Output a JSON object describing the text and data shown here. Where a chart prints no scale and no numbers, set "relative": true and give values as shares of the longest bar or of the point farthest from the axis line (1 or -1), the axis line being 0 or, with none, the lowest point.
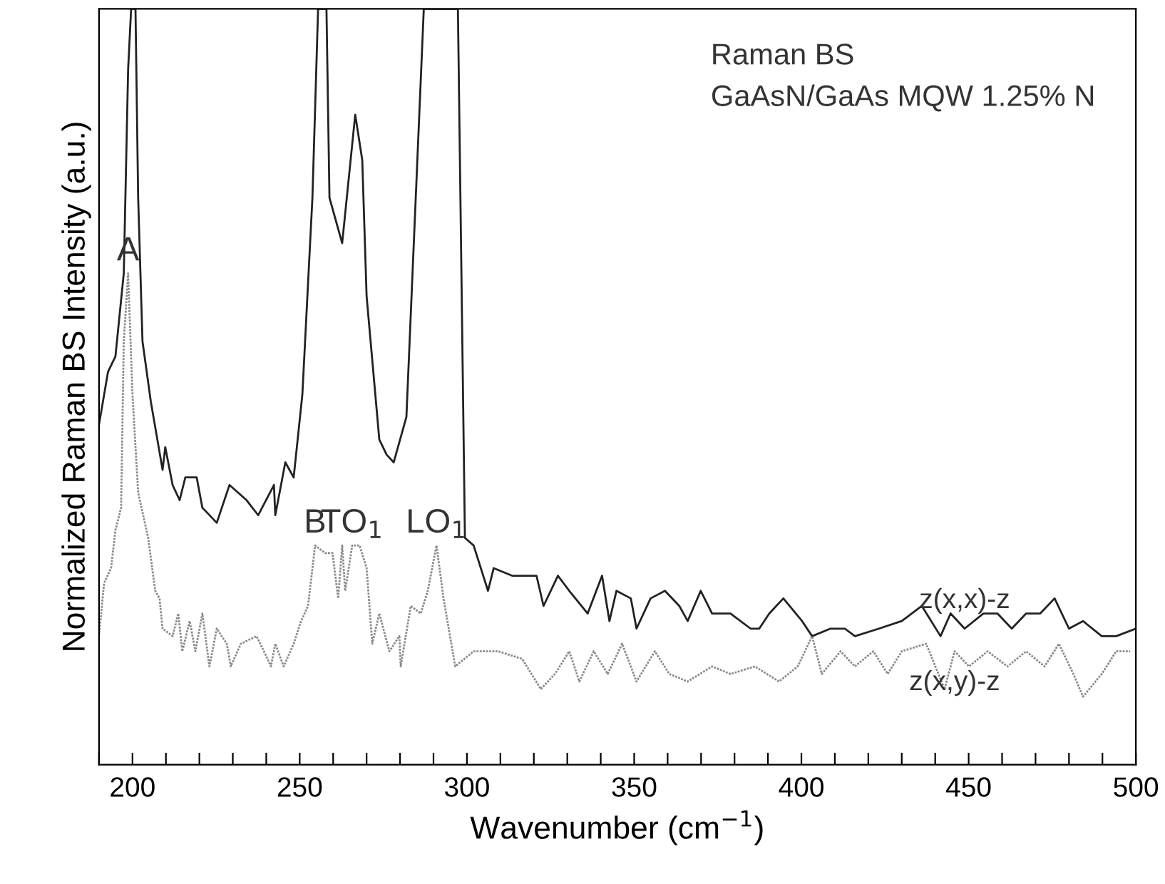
{
  "chart_data": {
    "type": "line",
    "xlabel": "Wavenumber (cm$^{−1}$)",
    "ylabel": "Normalized Raman BS Intensity (a.u.)",
    "relative": true,
    "tick_labels": "x",
    "grid": false,
    "legend": false,
    "xlim": [
      190,
      500
    ],
    "xticks": [
      {
        "value": 190,
        "label": null
      },
      200,
      {
        "value": 210,
        "label": null
      },
      {
        "value": 220,
        "label": null
      },
      {
        "value": 230,
        "label": null
      },
      {
        "value": 240,
        "label": null
      },
      250,
      {
        "value": 260,
        "label": null
      },
      {
        "value": 270,
        "label": null
      },
      {
        "value": 280,
        "label": null
      },
      {
        "value": 290,
        "label": null
      },
      300,
      {
        "value": 310,
        "label": null
      },
      {
        "value": 320,
        "label": null
      },
      {
        "value": 330,
        "label": null
      },
      {
        "value": 340,
        "label": null
      },
      350,
      {
        "value": 360,
        "label": null
      },
      {
        "value": 370,
        "label": null
      },
      {
        "value": 380,
        "label": null
      },
      {
        "value": 390,
        "label": null
      },
      400,
      {
        "value": 410,
        "label": null
      },
      {
        "value": 420,
        "label": null
      },
      {
        "value": 430,
        "label": null
      },
      {
        "value": 440,
        "label": null
      },
      450,
      {
        "value": 460,
        "label": null
      },
      {
        "value": 470,
        "label": null
      },
      {
        "value": 480,
        "label": null
      },
      {
        "value": 490,
        "label": null
      },
      500
    ],
    "annotations": [
      "Raman BS",
      "GaAsN/GaAs MQW 1.25% N",
      {
        "text": "A",
        "x": 198.7,
        "y": 0.65
      },
      {
        "text": "B",
        "x": 254.6,
        "y": 0.29
      },
      {
        "text": "TO$_{1}$",
        "x": 265.7,
        "y": 0.29
      },
      {
        "text": "LO$_{1}$",
        "x": 290.9,
        "y": 0.29
      }
    ],
    "series": [
      {
        "name": "z(x,x)-z",
        "color": "#222222",
        "line_style": "solid",
        "x": [
          190,
          192.7,
          194.9,
          197.4,
          198.7,
          199.6,
          200.9,
          201.7,
          203.0,
          205.5,
          209.0,
          209.8,
          212.0,
          214.1,
          215.8,
          219.2,
          220.9,
          225.2,
          229.0,
          234.1,
          237.6,
          242.3,
          242.7,
          245.7,
          248.2,
          250.8,
          253.8,
          255.5,
          258.0,
          258.9,
          262.7,
          266.6,
          268.7,
          270.0,
          273.8,
          276.0,
          278.1,
          281.9,
          287.1,
          297.3,
          299.4,
          302.0,
          306.3,
          308.0,
          313.5,
          320.8,
          322.9,
          327.2,
          330.6,
          336.1,
          340.4,
          342.6,
          344.7,
          349.0,
          350.7,
          354.9,
          359.2,
          363.5,
          366.0,
          369.9,
          373.3,
          378.8,
          384.8,
          387.4,
          390.4,
          394.6,
          400.2,
          403.2,
          408.7,
          413.0,
          416.0,
          423.2,
          430.0,
          436.0,
          441.6,
          444.6,
          448.8,
          454.4,
          458.6,
          462.9,
          467.2,
          471.4,
          475.7,
          480.0,
          484.2,
          489.8,
          494.1,
          500
        ],
        "values": [
          0.45,
          0.52,
          0.54,
          0.65,
          0.92,
          1.0,
          1.0,
          0.75,
          0.56,
          0.48,
          0.39,
          0.42,
          0.37,
          0.35,
          0.38,
          0.38,
          0.34,
          0.32,
          0.37,
          0.35,
          0.33,
          0.37,
          0.33,
          0.4,
          0.38,
          0.49,
          0.75,
          1.0,
          1.0,
          0.75,
          0.69,
          0.86,
          0.8,
          0.62,
          0.43,
          0.41,
          0.4,
          0.46,
          1.0,
          1.0,
          0.3,
          0.29,
          0.23,
          0.26,
          0.25,
          0.25,
          0.21,
          0.25,
          0.23,
          0.2,
          0.25,
          0.19,
          0.23,
          0.22,
          0.18,
          0.22,
          0.23,
          0.21,
          0.19,
          0.23,
          0.2,
          0.2,
          0.18,
          0.18,
          0.2,
          0.22,
          0.19,
          0.17,
          0.18,
          0.18,
          0.17,
          0.18,
          0.19,
          0.21,
          0.17,
          0.2,
          0.18,
          0.2,
          0.2,
          0.18,
          0.2,
          0.2,
          0.22,
          0.18,
          0.19,
          0.17,
          0.17,
          0.18
        ]
      },
      {
        "name": "z(x,y)-z",
        "color": "#8a8a8a",
        "line_style": "dotted",
        "x": [
          190,
          191.5,
          193.6,
          194.9,
          196.6,
          197.4,
          198.7,
          200.0,
          201.7,
          204.7,
          206.8,
          208.1,
          209.0,
          212.0,
          213.7,
          214.9,
          217.1,
          218.8,
          220.9,
          223.0,
          225.2,
          228.2,
          229.4,
          232.4,
          237.1,
          239.3,
          241.4,
          242.7,
          245.2,
          248.2,
          250.4,
          252.5,
          254.6,
          257.6,
          259.8,
          261.5,
          262.7,
          263.6,
          265.7,
          267.9,
          270.0,
          271.7,
          273.8,
          276.8,
          279.8,
          280.2,
          283.2,
          286.2,
          288.3,
          290.9,
          293.0,
          296.5,
          302.0,
          309.3,
          316.5,
          322.1,
          326.3,
          330.6,
          333.6,
          337.9,
          342.1,
          346.4,
          350.7,
          356.2,
          360.5,
          366.0,
          373.3,
          378.8,
          386.1,
          393.3,
          398.9,
          403.2,
          406.1,
          411.7,
          416.0,
          421.5,
          425.8,
          430.0,
          437.3,
          442.8,
          445.8,
          450.1,
          455.7,
          461.6,
          467.2,
          472.7,
          477.0,
          481.3,
          484.2,
          489.8,
          494.1,
          498.3
        ],
        "values": [
          0.17,
          0.24,
          0.26,
          0.31,
          0.34,
          0.56,
          0.65,
          0.49,
          0.36,
          0.3,
          0.23,
          0.22,
          0.18,
          0.17,
          0.2,
          0.15,
          0.19,
          0.15,
          0.2,
          0.13,
          0.18,
          0.16,
          0.13,
          0.16,
          0.17,
          0.15,
          0.13,
          0.16,
          0.13,
          0.16,
          0.19,
          0.21,
          0.29,
          0.28,
          0.28,
          0.22,
          0.29,
          0.23,
          0.29,
          0.29,
          0.26,
          0.16,
          0.2,
          0.15,
          0.17,
          0.13,
          0.21,
          0.2,
          0.23,
          0.29,
          0.22,
          0.13,
          0.15,
          0.15,
          0.14,
          0.1,
          0.12,
          0.15,
          0.11,
          0.15,
          0.12,
          0.16,
          0.11,
          0.15,
          0.12,
          0.11,
          0.13,
          0.12,
          0.13,
          0.11,
          0.13,
          0.17,
          0.12,
          0.15,
          0.13,
          0.15,
          0.12,
          0.15,
          0.16,
          0.1,
          0.15,
          0.13,
          0.15,
          0.13,
          0.15,
          0.13,
          0.16,
          0.12,
          0.09,
          0.12,
          0.15,
          0.15
        ]
      }
    ]
  }
}
